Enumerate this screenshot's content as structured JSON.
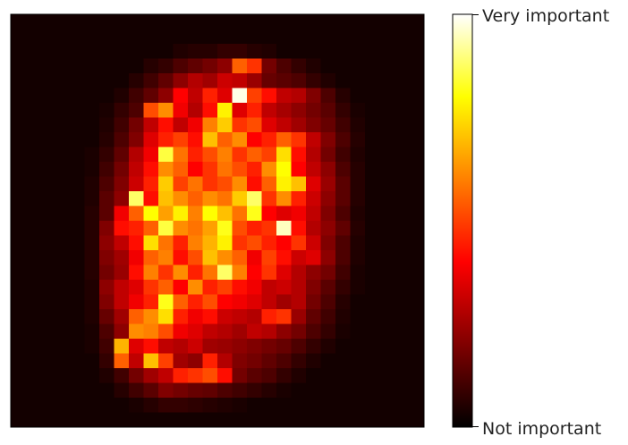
{
  "chart_data": {
    "type": "heatmap",
    "title": "",
    "xlabel": "",
    "ylabel": "",
    "axes_visible": false,
    "grid": false,
    "colormap": "hot",
    "colormap_stops": [
      "#000000",
      "#800000",
      "#ff0000",
      "#ff8000",
      "#ffff00",
      "#ffffff"
    ],
    "value_range": [
      0,
      1
    ],
    "rows": 28,
    "cols": 28,
    "colorbar": {
      "position": "right",
      "max_label": "Very important",
      "min_label": "Not important"
    },
    "cells": [
      [
        0.03,
        0.03,
        0.03,
        0.03,
        0.03,
        0.03,
        0.03,
        0.03,
        0.03,
        0.03,
        0.03,
        0.03,
        0.03,
        0.03,
        0.03,
        0.03,
        0.03,
        0.03,
        0.03,
        0.03,
        0.03,
        0.03,
        0.03,
        0.03,
        0.03,
        0.03,
        0.03,
        0.03
      ],
      [
        0.03,
        0.03,
        0.03,
        0.03,
        0.03,
        0.03,
        0.03,
        0.03,
        0.03,
        0.03,
        0.03,
        0.03,
        0.03,
        0.03,
        0.03,
        0.03,
        0.03,
        0.03,
        0.03,
        0.03,
        0.03,
        0.03,
        0.03,
        0.03,
        0.03,
        0.03,
        0.03,
        0.03
      ],
      [
        0.03,
        0.03,
        0.03,
        0.03,
        0.03,
        0.03,
        0.03,
        0.03,
        0.03,
        0.03,
        0.03,
        0.05,
        0.06,
        0.06,
        0.08,
        0.08,
        0.06,
        0.05,
        0.03,
        0.03,
        0.03,
        0.03,
        0.03,
        0.03,
        0.03,
        0.03,
        0.03,
        0.03
      ],
      [
        0.03,
        0.03,
        0.03,
        0.03,
        0.03,
        0.03,
        0.03,
        0.03,
        0.03,
        0.06,
        0.08,
        0.12,
        0.15,
        0.18,
        0.22,
        0.55,
        0.48,
        0.18,
        0.12,
        0.08,
        0.05,
        0.03,
        0.03,
        0.03,
        0.03,
        0.03,
        0.03,
        0.03
      ],
      [
        0.03,
        0.03,
        0.03,
        0.03,
        0.03,
        0.03,
        0.03,
        0.03,
        0.06,
        0.1,
        0.15,
        0.22,
        0.28,
        0.25,
        0.32,
        0.3,
        0.24,
        0.16,
        0.14,
        0.12,
        0.08,
        0.05,
        0.03,
        0.03,
        0.03,
        0.03,
        0.03,
        0.03
      ],
      [
        0.03,
        0.03,
        0.03,
        0.03,
        0.03,
        0.03,
        0.03,
        0.05,
        0.1,
        0.15,
        0.22,
        0.4,
        0.3,
        0.45,
        0.35,
        0.98,
        0.5,
        0.42,
        0.3,
        0.28,
        0.2,
        0.12,
        0.06,
        0.03,
        0.03,
        0.03,
        0.03,
        0.03
      ],
      [
        0.03,
        0.03,
        0.03,
        0.03,
        0.03,
        0.03,
        0.04,
        0.08,
        0.12,
        0.52,
        0.62,
        0.38,
        0.28,
        0.42,
        0.78,
        0.35,
        0.45,
        0.3,
        0.26,
        0.22,
        0.18,
        0.14,
        0.08,
        0.04,
        0.03,
        0.03,
        0.03,
        0.03
      ],
      [
        0.03,
        0.03,
        0.03,
        0.03,
        0.03,
        0.03,
        0.05,
        0.1,
        0.18,
        0.3,
        0.42,
        0.3,
        0.38,
        0.6,
        0.72,
        0.48,
        0.52,
        0.35,
        0.3,
        0.25,
        0.2,
        0.16,
        0.1,
        0.05,
        0.03,
        0.03,
        0.03,
        0.03
      ],
      [
        0.03,
        0.03,
        0.03,
        0.03,
        0.03,
        0.03,
        0.06,
        0.12,
        0.2,
        0.35,
        0.45,
        0.5,
        0.42,
        0.7,
        0.55,
        0.62,
        0.4,
        0.45,
        0.55,
        0.48,
        0.3,
        0.2,
        0.12,
        0.06,
        0.03,
        0.03,
        0.03,
        0.03
      ],
      [
        0.03,
        0.03,
        0.03,
        0.03,
        0.03,
        0.04,
        0.08,
        0.15,
        0.28,
        0.38,
        0.85,
        0.58,
        0.45,
        0.52,
        0.6,
        0.48,
        0.55,
        0.5,
        0.75,
        0.42,
        0.28,
        0.18,
        0.1,
        0.05,
        0.03,
        0.03,
        0.03,
        0.03
      ],
      [
        0.03,
        0.03,
        0.03,
        0.03,
        0.03,
        0.04,
        0.1,
        0.18,
        0.3,
        0.42,
        0.62,
        0.55,
        0.4,
        0.48,
        0.58,
        0.52,
        0.45,
        0.62,
        0.8,
        0.4,
        0.3,
        0.22,
        0.12,
        0.06,
        0.03,
        0.03,
        0.03,
        0.03
      ],
      [
        0.03,
        0.03,
        0.03,
        0.03,
        0.03,
        0.05,
        0.12,
        0.2,
        0.32,
        0.45,
        0.72,
        0.5,
        0.58,
        0.48,
        0.52,
        0.62,
        0.42,
        0.55,
        0.78,
        0.7,
        0.35,
        0.24,
        0.14,
        0.06,
        0.03,
        0.03,
        0.03,
        0.03
      ],
      [
        0.03,
        0.03,
        0.03,
        0.03,
        0.03,
        0.05,
        0.14,
        0.22,
        0.88,
        0.42,
        0.7,
        0.62,
        0.55,
        0.62,
        0.58,
        0.72,
        0.88,
        0.48,
        0.62,
        0.45,
        0.32,
        0.22,
        0.14,
        0.06,
        0.03,
        0.03,
        0.03,
        0.03
      ],
      [
        0.03,
        0.03,
        0.03,
        0.03,
        0.03,
        0.06,
        0.14,
        0.38,
        0.55,
        0.8,
        0.65,
        0.78,
        0.6,
        0.8,
        0.7,
        0.58,
        0.82,
        0.4,
        0.35,
        0.38,
        0.3,
        0.2,
        0.12,
        0.05,
        0.03,
        0.03,
        0.03,
        0.03
      ],
      [
        0.03,
        0.03,
        0.03,
        0.03,
        0.03,
        0.06,
        0.2,
        0.42,
        0.45,
        0.55,
        0.85,
        0.62,
        0.58,
        0.65,
        0.82,
        0.52,
        0.45,
        0.48,
        0.95,
        0.42,
        0.28,
        0.22,
        0.15,
        0.06,
        0.03,
        0.03,
        0.03,
        0.03
      ],
      [
        0.03,
        0.03,
        0.03,
        0.03,
        0.03,
        0.06,
        0.22,
        0.3,
        0.42,
        0.75,
        0.58,
        0.45,
        0.6,
        0.68,
        0.78,
        0.48,
        0.52,
        0.45,
        0.4,
        0.48,
        0.32,
        0.2,
        0.12,
        0.05,
        0.03,
        0.03,
        0.03,
        0.03
      ],
      [
        0.03,
        0.03,
        0.03,
        0.03,
        0.03,
        0.06,
        0.2,
        0.25,
        0.38,
        0.55,
        0.6,
        0.42,
        0.52,
        0.7,
        0.62,
        0.55,
        0.38,
        0.5,
        0.42,
        0.32,
        0.35,
        0.22,
        0.12,
        0.05,
        0.03,
        0.03,
        0.03,
        0.03
      ],
      [
        0.03,
        0.03,
        0.03,
        0.03,
        0.03,
        0.06,
        0.18,
        0.24,
        0.42,
        0.6,
        0.48,
        0.62,
        0.45,
        0.58,
        0.88,
        0.6,
        0.4,
        0.48,
        0.35,
        0.28,
        0.22,
        0.18,
        0.1,
        0.04,
        0.03,
        0.03,
        0.03,
        0.03
      ],
      [
        0.03,
        0.03,
        0.03,
        0.03,
        0.03,
        0.05,
        0.22,
        0.3,
        0.35,
        0.48,
        0.55,
        0.4,
        0.62,
        0.45,
        0.5,
        0.42,
        0.38,
        0.3,
        0.32,
        0.28,
        0.2,
        0.14,
        0.08,
        0.04,
        0.03,
        0.03,
        0.03,
        0.03
      ],
      [
        0.03,
        0.03,
        0.03,
        0.03,
        0.03,
        0.05,
        0.2,
        0.3,
        0.38,
        0.45,
        0.82,
        0.55,
        0.45,
        0.52,
        0.4,
        0.38,
        0.35,
        0.3,
        0.25,
        0.28,
        0.18,
        0.12,
        0.06,
        0.03,
        0.03,
        0.03,
        0.03,
        0.03
      ],
      [
        0.03,
        0.03,
        0.03,
        0.03,
        0.03,
        0.05,
        0.16,
        0.25,
        0.55,
        0.62,
        0.75,
        0.45,
        0.38,
        0.42,
        0.32,
        0.3,
        0.28,
        0.45,
        0.48,
        0.24,
        0.15,
        0.1,
        0.05,
        0.03,
        0.03,
        0.03,
        0.03,
        0.03
      ],
      [
        0.03,
        0.03,
        0.03,
        0.03,
        0.03,
        0.04,
        0.12,
        0.22,
        0.62,
        0.6,
        0.52,
        0.38,
        0.35,
        0.3,
        0.28,
        0.25,
        0.3,
        0.28,
        0.22,
        0.18,
        0.12,
        0.08,
        0.04,
        0.03,
        0.03,
        0.03,
        0.03,
        0.03
      ],
      [
        0.03,
        0.03,
        0.03,
        0.03,
        0.03,
        0.04,
        0.1,
        0.68,
        0.35,
        0.42,
        0.3,
        0.28,
        0.32,
        0.25,
        0.24,
        0.22,
        0.2,
        0.18,
        0.16,
        0.12,
        0.08,
        0.05,
        0.03,
        0.03,
        0.03,
        0.03,
        0.03,
        0.03
      ],
      [
        0.03,
        0.03,
        0.03,
        0.03,
        0.03,
        0.03,
        0.08,
        0.55,
        0.3,
        0.7,
        0.5,
        0.25,
        0.22,
        0.45,
        0.28,
        0.2,
        0.18,
        0.15,
        0.12,
        0.08,
        0.05,
        0.03,
        0.03,
        0.03,
        0.03,
        0.03,
        0.03,
        0.03
      ],
      [
        0.03,
        0.03,
        0.03,
        0.03,
        0.03,
        0.03,
        0.05,
        0.1,
        0.18,
        0.25,
        0.3,
        0.45,
        0.48,
        0.52,
        0.42,
        0.18,
        0.14,
        0.12,
        0.08,
        0.05,
        0.03,
        0.03,
        0.03,
        0.03,
        0.03,
        0.03,
        0.03,
        0.03
      ],
      [
        0.03,
        0.03,
        0.03,
        0.03,
        0.03,
        0.03,
        0.03,
        0.06,
        0.1,
        0.14,
        0.2,
        0.18,
        0.16,
        0.15,
        0.12,
        0.1,
        0.08,
        0.06,
        0.04,
        0.03,
        0.03,
        0.03,
        0.03,
        0.03,
        0.03,
        0.03,
        0.03,
        0.03
      ],
      [
        0.03,
        0.03,
        0.03,
        0.03,
        0.03,
        0.03,
        0.03,
        0.03,
        0.04,
        0.06,
        0.08,
        0.08,
        0.07,
        0.06,
        0.05,
        0.04,
        0.03,
        0.03,
        0.03,
        0.03,
        0.03,
        0.03,
        0.03,
        0.03,
        0.03,
        0.03,
        0.03,
        0.03
      ],
      [
        0.03,
        0.03,
        0.03,
        0.03,
        0.03,
        0.03,
        0.03,
        0.03,
        0.03,
        0.03,
        0.03,
        0.03,
        0.03,
        0.03,
        0.03,
        0.03,
        0.03,
        0.03,
        0.03,
        0.03,
        0.03,
        0.03,
        0.03,
        0.03,
        0.03,
        0.03,
        0.03,
        0.03
      ]
    ]
  }
}
